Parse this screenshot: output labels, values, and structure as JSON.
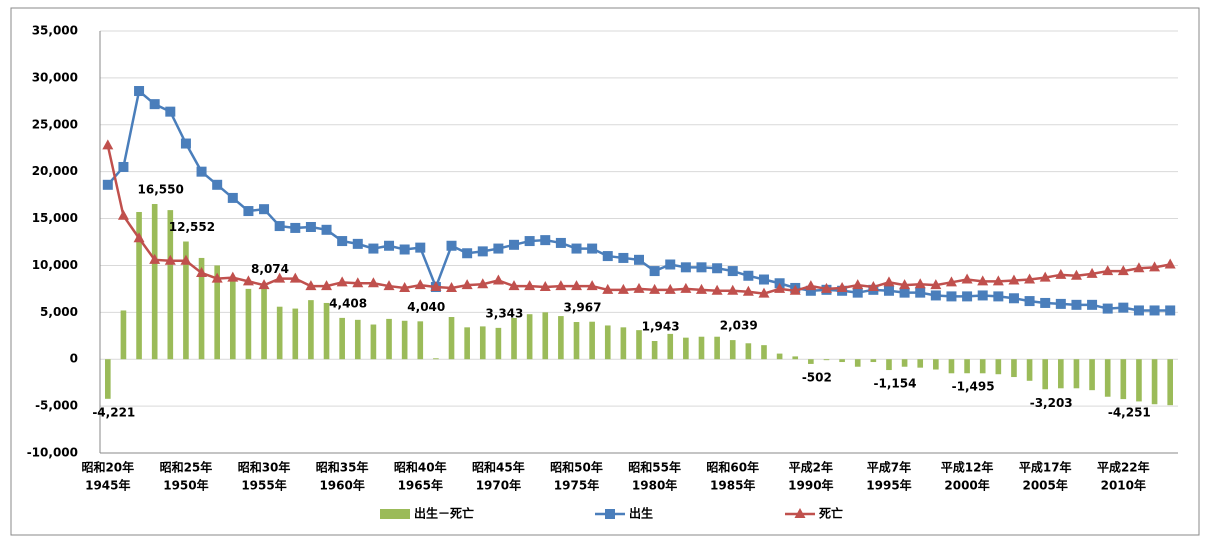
{
  "chart_data": {
    "type": "combo",
    "categories": [
      "1945年",
      null,
      null,
      null,
      null,
      "1950年",
      null,
      null,
      null,
      null,
      "1955年",
      null,
      null,
      null,
      null,
      "1960年",
      null,
      null,
      null,
      null,
      "1965年",
      null,
      null,
      null,
      null,
      "1970年",
      null,
      null,
      null,
      null,
      "1975年",
      null,
      null,
      null,
      null,
      "1980年",
      null,
      null,
      null,
      null,
      "1985年",
      null,
      null,
      null,
      null,
      "1990年",
      null,
      null,
      null,
      null,
      "1995年",
      null,
      null,
      null,
      null,
      "2000年",
      null,
      null,
      null,
      null,
      "2005年",
      null,
      null,
      null,
      null,
      "2010年",
      null,
      null,
      null
    ],
    "era_labels": [
      "昭和20年",
      null,
      null,
      null,
      null,
      "昭和25年",
      null,
      null,
      null,
      null,
      "昭和30年",
      null,
      null,
      null,
      null,
      "昭和35年",
      null,
      null,
      null,
      null,
      "昭和40年",
      null,
      null,
      null,
      null,
      "昭和45年",
      null,
      null,
      null,
      null,
      "昭和50年",
      null,
      null,
      null,
      null,
      "昭和55年",
      null,
      null,
      null,
      null,
      "昭和60年",
      null,
      null,
      null,
      null,
      "平成2年",
      null,
      null,
      null,
      null,
      "平成7年",
      null,
      null,
      null,
      null,
      "平成12年",
      null,
      null,
      null,
      null,
      "平成17年",
      null,
      null,
      null,
      null,
      "平成22年",
      null,
      null,
      null
    ],
    "series": [
      {
        "name": "出生－死亡",
        "kind": "bar",
        "color": "#9bbb59",
        "values": [
          -4221,
          5200,
          15700,
          16550,
          15900,
          12552,
          10800,
          10000,
          8500,
          7500,
          8074,
          5600,
          5400,
          6300,
          6000,
          4408,
          4200,
          3700,
          4300,
          4100,
          4040,
          100,
          4500,
          3400,
          3500,
          3343,
          4400,
          4800,
          5000,
          4600,
          3967,
          4000,
          3600,
          3400,
          3100,
          1943,
          2700,
          2300,
          2400,
          2400,
          2039,
          1700,
          1500,
          600,
          300,
          -502,
          -100,
          -300,
          -800,
          -300,
          -1154,
          -800,
          -900,
          -1100,
          -1500,
          -1495,
          -1500,
          -1600,
          -1900,
          -2300,
          -3203,
          -3100,
          -3100,
          -3300,
          -4000,
          -4251,
          -4500,
          -4800,
          -4900
        ],
        "value_labels": [
          "-4,221",
          null,
          null,
          "16,550",
          null,
          "12,552",
          null,
          null,
          null,
          null,
          "8,074",
          null,
          null,
          null,
          null,
          "4,408",
          null,
          null,
          null,
          null,
          "4,040",
          null,
          null,
          null,
          null,
          "3,343",
          null,
          null,
          null,
          null,
          "3,967",
          null,
          null,
          null,
          null,
          "1,943",
          null,
          null,
          null,
          null,
          "2,039",
          null,
          null,
          null,
          null,
          "-502",
          null,
          null,
          null,
          null,
          "-1,154",
          null,
          null,
          null,
          null,
          "-1,495",
          null,
          null,
          null,
          null,
          "-3,203",
          null,
          null,
          null,
          null,
          "-4,251",
          null,
          null,
          null
        ]
      },
      {
        "name": "出生",
        "kind": "line",
        "marker": "square",
        "color": "#4a7ebb",
        "values": [
          18600,
          20500,
          28600,
          27200,
          26400,
          23000,
          20000,
          18600,
          17200,
          15800,
          16000,
          14200,
          14000,
          14100,
          13800,
          12600,
          12300,
          11800,
          12100,
          11700,
          11900,
          7700,
          12100,
          11300,
          11500,
          11800,
          12200,
          12600,
          12700,
          12400,
          11800,
          11800,
          11000,
          10800,
          10600,
          9400,
          10100,
          9800,
          9800,
          9700,
          9400,
          8900,
          8500,
          8100,
          7600,
          7300,
          7400,
          7300,
          7100,
          7400,
          7300,
          7100,
          7100,
          6800,
          6700,
          6700,
          6800,
          6700,
          6500,
          6200,
          6000,
          5900,
          5800,
          5800,
          5400,
          5500,
          5200,
          5200,
          5200
        ]
      },
      {
        "name": "死亡",
        "kind": "line",
        "marker": "triangle",
        "color": "#c0504d",
        "values": [
          22800,
          15300,
          12900,
          10600,
          10500,
          10500,
          9200,
          8600,
          8700,
          8300,
          7900,
          8600,
          8600,
          7800,
          7800,
          8200,
          8100,
          8100,
          7800,
          7600,
          7900,
          7700,
          7600,
          7900,
          8000,
          8400,
          7800,
          7800,
          7700,
          7800,
          7800,
          7800,
          7400,
          7400,
          7500,
          7400,
          7400,
          7500,
          7400,
          7300,
          7300,
          7200,
          7000,
          7500,
          7300,
          7800,
          7500,
          7600,
          7900,
          7700,
          8200,
          7900,
          8000,
          7900,
          8200,
          8500,
          8300,
          8300,
          8400,
          8500,
          8700,
          9000,
          8900,
          9100,
          9400,
          9400,
          9700,
          9800,
          10100
        ]
      }
    ],
    "ylim": [
      -10000,
      35000
    ],
    "yticks": [
      {
        "value": -10000,
        "label": "-10,000"
      },
      {
        "value": -5000,
        "label": "-5,000"
      },
      0,
      {
        "value": 5000,
        "label": "5,000"
      },
      {
        "value": 10000,
        "label": "10,000"
      },
      {
        "value": 15000,
        "label": "15,000"
      },
      {
        "value": 20000,
        "label": "20,000"
      },
      {
        "value": 25000,
        "label": "25,000"
      },
      {
        "value": 30000,
        "label": "30,000"
      },
      {
        "value": 35000,
        "label": "35,000"
      }
    ],
    "grid": true,
    "legend": "bottom"
  }
}
